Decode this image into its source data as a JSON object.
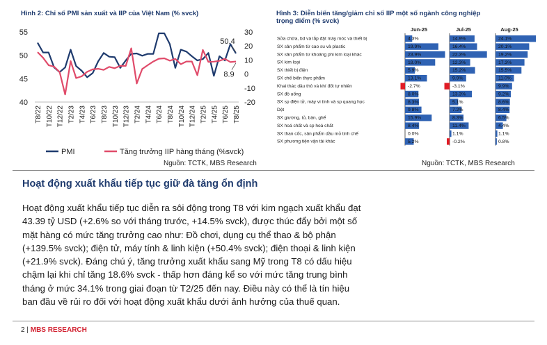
{
  "figure2": {
    "title": "Hình 2: Chỉ số PMI sản xuất và IIP của Việt Nam (% svck)",
    "left_axis_ticks": [
      "55",
      "50",
      "45",
      "40"
    ],
    "right_axis_ticks": [
      "30",
      "20",
      "10",
      "0",
      "-10",
      "-20"
    ],
    "x_ticks": [
      "T8/22",
      "T10/22",
      "T12/22",
      "T2/23",
      "T4/23",
      "T6/23",
      "T8/23",
      "T10/23",
      "T12/23",
      "T2/24",
      "T4/24",
      "T6/24",
      "T8/24",
      "T10/24",
      "T12/24",
      "T2/25",
      "T4/25",
      "T6/25",
      "T8/25"
    ],
    "annotations": [
      "50.4",
      "8.9"
    ],
    "legend": [
      "PMI",
      "Tăng trưởng IIP hàng tháng (%svck)"
    ],
    "source": "Nguồn: TCTK, MBS Research",
    "colors": {
      "pmi": "#1f3b6e",
      "iip": "#e04b6a"
    }
  },
  "chart_data": {
    "type": "line",
    "x": [
      "T8/22",
      "T9/22",
      "T10/22",
      "T11/22",
      "T12/22",
      "T1/23",
      "T2/23",
      "T3/23",
      "T4/23",
      "T5/23",
      "T6/23",
      "T7/23",
      "T8/23",
      "T9/23",
      "T10/23",
      "T11/23",
      "T12/23",
      "T1/24",
      "T2/24",
      "T3/24",
      "T4/24",
      "T5/24",
      "T6/24",
      "T7/24",
      "T8/24",
      "T9/24",
      "T10/24",
      "T11/24",
      "T12/24",
      "T1/25",
      "T2/25",
      "T3/25",
      "T4/25",
      "T5/25",
      "T6/25",
      "T7/25",
      "T8/25"
    ],
    "series": [
      {
        "name": "PMI",
        "axis": "left",
        "values": [
          52.7,
          50.6,
          50.6,
          47.4,
          46.4,
          47.4,
          51.2,
          47.7,
          46.7,
          45.3,
          46.2,
          48.7,
          50.5,
          49.7,
          49.6,
          47.3,
          48.9,
          50.3,
          50.4,
          49.9,
          50.3,
          50.3,
          54.7,
          54.7,
          52.4,
          47.3,
          51.2,
          50.8,
          49.8,
          48.9,
          49.2,
          50.5,
          45.6,
          49.8,
          48.9,
          52.4,
          50.4
        ]
      },
      {
        "name": "Tăng trưởng IIP hàng tháng (%svck)",
        "axis": "right",
        "values": [
          15.6,
          11.6,
          6.3,
          5.2,
          1.4,
          -14.6,
          9.2,
          -2.9,
          -1.7,
          1.6,
          3.3,
          3.7,
          2.9,
          5.1,
          4.1,
          5.8,
          5.8,
          18.3,
          -6.8,
          3.6,
          6.3,
          8.9,
          10.9,
          11.2,
          9.5,
          10.8,
          7.0,
          8.9,
          8.9,
          -0.9,
          17.2,
          8.6,
          8.8,
          9.4,
          10.8,
          8.5,
          8.9
        ]
      }
    ],
    "left_ylim": [
      40,
      55
    ],
    "right_ylim": [
      -20,
      30
    ],
    "legend_position": "bottom"
  },
  "figure3": {
    "title_line1": "Hình 3: Diễn biến tăng/giảm chỉ số IIP một số ngành công nghiệp",
    "title_line2": "trọng điểm (% svck)",
    "columns": [
      "Jun-25",
      "Jul-25",
      "Aug-25"
    ],
    "rows": [
      {
        "label": "Sửa chữa, bd và lắp đặt máy móc và thiết bị",
        "values": [
          4.3,
          14.9,
          24.1
        ],
        "text": [
          "4.3%",
          "14.9%",
          "24.1%"
        ]
      },
      {
        "label": "SX sản phẩm từ cao su và plastic",
        "values": [
          19.9,
          16.4,
          20.1
        ],
        "text": [
          "19.9%",
          "16.4%",
          "20.1%"
        ]
      },
      {
        "label": "SX sản phẩm từ khoáng phi kim loại khác",
        "values": [
          23.9,
          22.3,
          19.2
        ],
        "text": [
          "23.9%",
          "22.3%",
          "19.2%"
        ]
      },
      {
        "label": "SX kim loại",
        "values": [
          18.0,
          12.3,
          17.3
        ],
        "text": [
          "18.0%",
          "12.3%",
          "17.3%"
        ]
      },
      {
        "label": "SX thiết bị điện",
        "values": [
          5.9,
          15.2,
          15.5
        ],
        "text": [
          "5.9%",
          "15.2%",
          "15.5%"
        ]
      },
      {
        "label": "SX chế biến thực phẩm",
        "values": [
          13.1,
          9.9,
          11.0
        ],
        "text": [
          "13.1%",
          "9.9%",
          "11.0%"
        ]
      },
      {
        "label": "Khai thác dầu thô và khí đốt tự nhiên",
        "values": [
          -2.7,
          -3.1,
          9.9
        ],
        "text": [
          "-2.7%",
          "-3.1%",
          "9.9%"
        ]
      },
      {
        "label": "SX đồ uống",
        "values": [
          8.0,
          13.3,
          9.2
        ],
        "text": [
          "8.0%",
          "13.3%",
          "9.2%"
        ]
      },
      {
        "label": "SX sp điện tử, máy vi tính và sp quang học",
        "values": [
          8.3,
          5.1,
          8.6
        ],
        "text": [
          "8.3%",
          "5.1%",
          "8.6%"
        ]
      },
      {
        "label": "Dệt",
        "values": [
          9.8,
          7.2,
          8.4
        ],
        "text": [
          "9.8%",
          "7.2%",
          "8.4%"
        ]
      },
      {
        "label": "SX giường, tủ, bàn, ghế",
        "values": [
          15.9,
          8.3,
          6.5
        ],
        "text": [
          "15.9%",
          "8.3%",
          "6.5%"
        ]
      },
      {
        "label": "SX hoá chất và sp hoá chất",
        "values": [
          8.4,
          11.4,
          4.4
        ],
        "text": [
          "8.4%",
          "11.4%",
          "4.4%"
        ]
      },
      {
        "label": "SX than cốc, sản phẩm dầu mỏ tinh chế",
        "values": [
          0.0,
          1.1,
          1.1
        ],
        "text": [
          "0.0%",
          "1.1%",
          "1.1%"
        ]
      },
      {
        "label": "SX phương tiện vận tải khác",
        "values": [
          5.2,
          -0.2,
          0.8
        ],
        "text": [
          "5.2%",
          "-0.2%",
          "0.8%"
        ]
      }
    ],
    "max_value": 24.1,
    "source": "Nguồn: TCTK, MBS Research",
    "colors": {
      "positive": "#2f62b3",
      "negative": "#e01b24"
    }
  },
  "section": {
    "heading": "Hoạt động xuất khẩu tiếp tục giữ đà tăng ổn định",
    "paragraph1": [
      "Hoạt động xuất khẩu tiếp tục diễn ra sôi động trong T8 với kim ngạch xuất khẩu đạt",
      "43.39 tỷ USD (+2.6% so với tháng trước, +14.5% svck), được thúc đẩy bởi một số",
      "mặt hàng có mức tăng trưởng cao như: Đồ chơi, dụng cụ thể thao & bộ phận",
      "(+139.5% svck); điện tử, máy tính & linh kiện (+50.4% svck); điện thoại & linh kiện",
      "(+21.9% svck)."
    ],
    "paragraph2": [
      "Đáng chú ý, tăng trưởng xuất khẩu sang Mỹ trong T8 có dấu hiệu",
      "chậm lại khi chỉ tăng 18.6% svck - thấp hơn đáng kể so với mức tăng trung bình",
      "tháng ở mức 34.1% trong giai đoạn từ T2/25 đến nay. Điều này có thể là tín hiệu",
      "ban đầu về rủi ro đối với hoạt động xuất khẩu dưới ảnh hưởng của thuế quan."
    ]
  },
  "footer": {
    "page": "2",
    "separator": "|",
    "brand": "MBS RESEARCH"
  }
}
